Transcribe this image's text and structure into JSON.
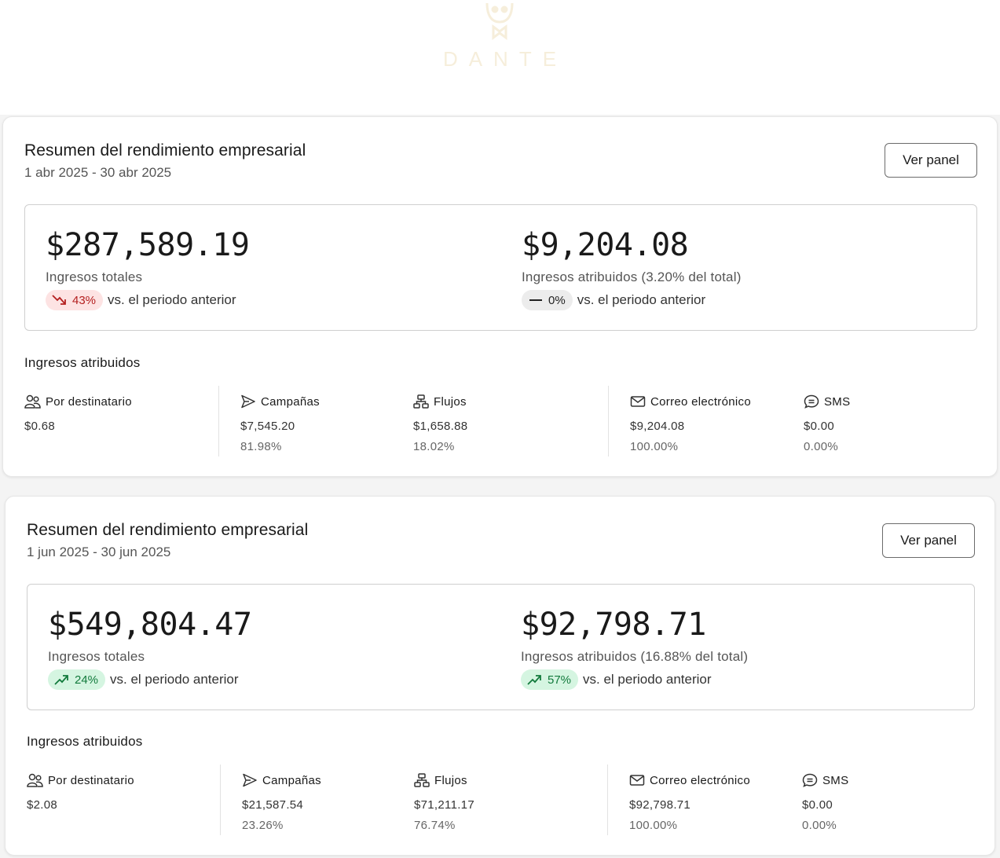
{
  "brand": {
    "logo_text": "DANTE"
  },
  "cards": [
    {
      "title": "Resumen del rendimiento empresarial",
      "date_range": "1 abr 2025 - 30 abr 2025",
      "button_label": "Ver panel",
      "total": {
        "value": "$287,589.19",
        "label": "Ingresos totales",
        "change": "43%",
        "trend": "down",
        "compare_text": "vs. el periodo anterior"
      },
      "attributed": {
        "value": "$9,204.08",
        "label": "Ingresos atribuidos (3.20% del total)",
        "change": "0%",
        "trend": "flat",
        "compare_text": "vs. el periodo anterior"
      },
      "section_title": "Ingresos atribuidos",
      "stats": {
        "per_recipient": {
          "label": "Por destinatario",
          "value": "$0.68"
        },
        "campaigns": {
          "label": "Campañas",
          "value": "$7,545.20",
          "pct": "81.98%"
        },
        "flows": {
          "label": "Flujos",
          "value": "$1,658.88",
          "pct": "18.02%"
        },
        "email": {
          "label": "Correo electrónico",
          "value": "$9,204.08",
          "pct": "100.00%"
        },
        "sms": {
          "label": "SMS",
          "value": "$0.00",
          "pct": "0.00%"
        }
      }
    },
    {
      "title": "Resumen del rendimiento empresarial",
      "date_range": "1 jun 2025 - 30 jun 2025",
      "button_label": "Ver panel",
      "total": {
        "value": "$549,804.47",
        "label": "Ingresos totales",
        "change": "24%",
        "trend": "up",
        "compare_text": "vs. el periodo anterior"
      },
      "attributed": {
        "value": "$92,798.71",
        "label": "Ingresos atribuidos (16.88% del total)",
        "change": "57%",
        "trend": "up",
        "compare_text": "vs. el periodo anterior"
      },
      "section_title": "Ingresos atribuidos",
      "stats": {
        "per_recipient": {
          "label": "Por destinatario",
          "value": "$2.08"
        },
        "campaigns": {
          "label": "Campañas",
          "value": "$21,587.54",
          "pct": "23.26%"
        },
        "flows": {
          "label": "Flujos",
          "value": "$71,211.17",
          "pct": "76.74%"
        },
        "email": {
          "label": "Correo electrónico",
          "value": "$92,798.71",
          "pct": "100.00%"
        },
        "sms": {
          "label": "SMS",
          "value": "$0.00",
          "pct": "0.00%"
        }
      }
    }
  ]
}
